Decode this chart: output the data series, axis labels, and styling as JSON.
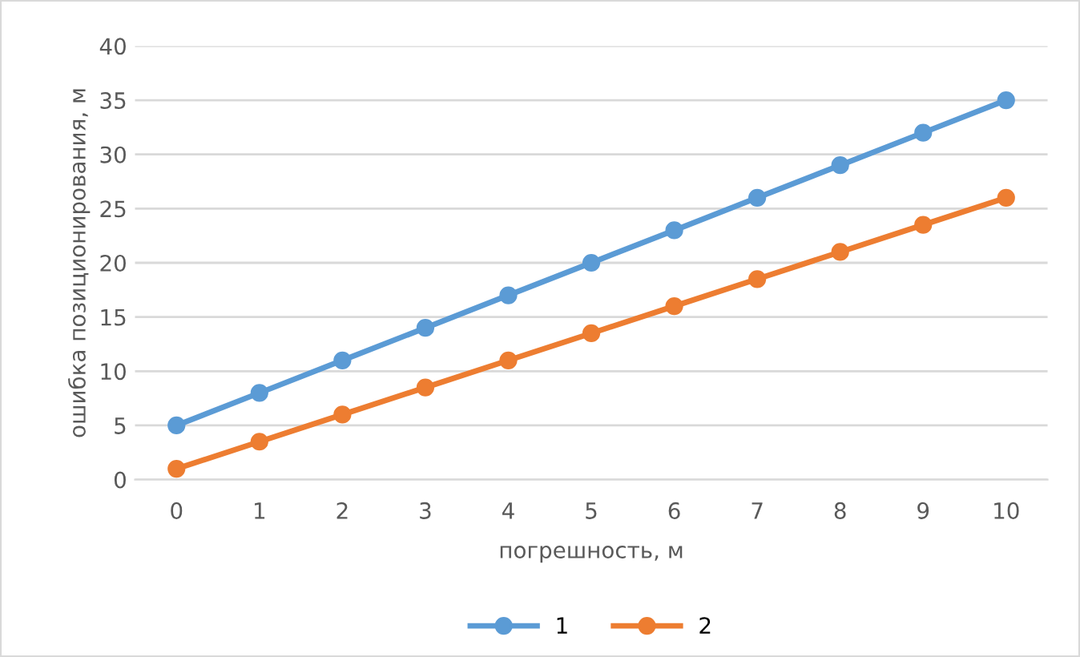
{
  "chart_data": {
    "type": "line",
    "xlabel": "погрешность, м",
    "ylabel": "ошибка позиционирования, м",
    "categories": [
      "0",
      "1",
      "2",
      "3",
      "4",
      "5",
      "6",
      "7",
      "8",
      "9",
      "10"
    ],
    "series": [
      {
        "name": "1",
        "color": "#5b9bd5",
        "values": [
          5,
          8,
          11,
          14,
          17,
          20,
          23,
          26,
          29,
          32,
          35
        ]
      },
      {
        "name": "2",
        "color": "#ed7d31",
        "values": [
          1,
          3.5,
          6,
          8.5,
          11,
          13.5,
          16,
          18.5,
          21,
          23.5,
          26
        ]
      }
    ],
    "ylim": [
      0,
      40
    ],
    "yticks": [
      0,
      5,
      10,
      15,
      20,
      25,
      30,
      35,
      40
    ],
    "grid": "y",
    "legend": "bottom",
    "marker": "circle",
    "line_style": "solid"
  }
}
